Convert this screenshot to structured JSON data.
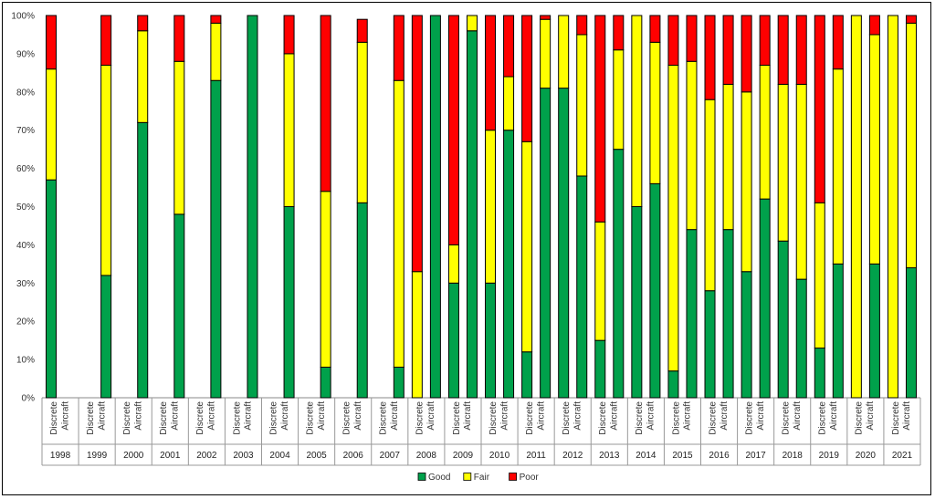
{
  "chart_data": {
    "type": "bar",
    "stacked": true,
    "normalized": true,
    "title": "",
    "xlabel": "",
    "ylabel": "",
    "ylim": [
      0,
      100
    ],
    "y_ticks": [
      "0%",
      "10%",
      "20%",
      "30%",
      "40%",
      "50%",
      "60%",
      "70%",
      "80%",
      "90%",
      "100%"
    ],
    "sub_categories": [
      "Discrete",
      "Aircraft"
    ],
    "series": [
      {
        "name": "Good",
        "color": "#00a14b"
      },
      {
        "name": "Fair",
        "color": "#ffff00"
      },
      {
        "name": "Poor",
        "color": "#ff0000"
      }
    ],
    "legend": {
      "position": "bottom",
      "items": [
        "Good",
        "Fair",
        "Poor"
      ]
    },
    "groups": [
      {
        "year": "1998",
        "bars": [
          {
            "label": "Discrete",
            "values": [
              57,
              29,
              14
            ]
          },
          {
            "label": "Aircraft",
            "values": null
          }
        ]
      },
      {
        "year": "1999",
        "bars": [
          {
            "label": "Discrete",
            "values": null
          },
          {
            "label": "Aircraft",
            "values": [
              32,
              55,
              13
            ]
          }
        ]
      },
      {
        "year": "2000",
        "bars": [
          {
            "label": "Discrete",
            "values": null
          },
          {
            "label": "Aircraft",
            "values": [
              72,
              24,
              4
            ]
          }
        ]
      },
      {
        "year": "2001",
        "bars": [
          {
            "label": "Discrete",
            "values": null
          },
          {
            "label": "Aircraft",
            "values": [
              48,
              40,
              12
            ]
          }
        ]
      },
      {
        "year": "2002",
        "bars": [
          {
            "label": "Discrete",
            "values": null
          },
          {
            "label": "Aircraft",
            "values": [
              83,
              15,
              2
            ]
          }
        ]
      },
      {
        "year": "2003",
        "bars": [
          {
            "label": "Discrete",
            "values": null
          },
          {
            "label": "Aircraft",
            "values": [
              100,
              0,
              0
            ]
          }
        ]
      },
      {
        "year": "2004",
        "bars": [
          {
            "label": "Discrete",
            "values": null
          },
          {
            "label": "Aircraft",
            "values": [
              50,
              40,
              10
            ]
          }
        ]
      },
      {
        "year": "2005",
        "bars": [
          {
            "label": "Discrete",
            "values": null
          },
          {
            "label": "Aircraft",
            "values": [
              8,
              46,
              46
            ]
          }
        ]
      },
      {
        "year": "2006",
        "bars": [
          {
            "label": "Discrete",
            "values": null
          },
          {
            "label": "Aircraft",
            "values": [
              51,
              42,
              6
            ]
          }
        ]
      },
      {
        "year": "2007",
        "bars": [
          {
            "label": "Discrete",
            "values": null
          },
          {
            "label": "Aircraft",
            "values": [
              8,
              75,
              17
            ]
          }
        ]
      },
      {
        "year": "2008",
        "bars": [
          {
            "label": "Discrete",
            "values": [
              0,
              33,
              67
            ]
          },
          {
            "label": "Aircraft",
            "values": [
              100,
              0,
              0
            ]
          }
        ]
      },
      {
        "year": "2009",
        "bars": [
          {
            "label": "Discrete",
            "values": [
              30,
              10,
              60
            ]
          },
          {
            "label": "Aircraft",
            "values": [
              96,
              4,
              0
            ]
          }
        ]
      },
      {
        "year": "2010",
        "bars": [
          {
            "label": "Discrete",
            "values": [
              30,
              40,
              30
            ]
          },
          {
            "label": "Aircraft",
            "values": [
              70,
              14,
              16
            ]
          }
        ]
      },
      {
        "year": "2011",
        "bars": [
          {
            "label": "Discrete",
            "values": [
              12,
              55,
              33
            ]
          },
          {
            "label": "Aircraft",
            "values": [
              81,
              18,
              1
            ]
          }
        ]
      },
      {
        "year": "2012",
        "bars": [
          {
            "label": "Discrete",
            "values": [
              81,
              19,
              0
            ]
          },
          {
            "label": "Aircraft",
            "values": [
              58,
              37,
              5
            ]
          }
        ]
      },
      {
        "year": "2013",
        "bars": [
          {
            "label": "Discrete",
            "values": [
              15,
              31,
              54
            ]
          },
          {
            "label": "Aircraft",
            "values": [
              65,
              26,
              9
            ]
          }
        ]
      },
      {
        "year": "2014",
        "bars": [
          {
            "label": "Discrete",
            "values": [
              50,
              50,
              0
            ]
          },
          {
            "label": "Aircraft",
            "values": [
              56,
              37,
              7
            ]
          }
        ]
      },
      {
        "year": "2015",
        "bars": [
          {
            "label": "Discrete",
            "values": [
              7,
              80,
              13
            ]
          },
          {
            "label": "Aircraft",
            "values": [
              44,
              44,
              12
            ]
          }
        ]
      },
      {
        "year": "2016",
        "bars": [
          {
            "label": "Discrete",
            "values": [
              28,
              50,
              22
            ]
          },
          {
            "label": "Aircraft",
            "values": [
              44,
              38,
              18
            ]
          }
        ]
      },
      {
        "year": "2017",
        "bars": [
          {
            "label": "Discrete",
            "values": [
              33,
              47,
              20
            ]
          },
          {
            "label": "Aircraft",
            "values": [
              52,
              35,
              13
            ]
          }
        ]
      },
      {
        "year": "2018",
        "bars": [
          {
            "label": "Discrete",
            "values": [
              41,
              41,
              18
            ]
          },
          {
            "label": "Aircraft",
            "values": [
              31,
              51,
              18
            ]
          }
        ]
      },
      {
        "year": "2019",
        "bars": [
          {
            "label": "Discrete",
            "values": [
              13,
              38,
              49
            ]
          },
          {
            "label": "Aircraft",
            "values": [
              35,
              51,
              14
            ]
          }
        ]
      },
      {
        "year": "2020",
        "bars": [
          {
            "label": "Discrete",
            "values": [
              0,
              100,
              0
            ]
          },
          {
            "label": "Aircraft",
            "values": [
              35,
              60,
              5
            ]
          }
        ]
      },
      {
        "year": "2021",
        "bars": [
          {
            "label": "Discrete",
            "values": [
              0,
              100,
              0
            ]
          },
          {
            "label": "Aircraft",
            "values": [
              34,
              64,
              2
            ]
          }
        ]
      }
    ]
  }
}
